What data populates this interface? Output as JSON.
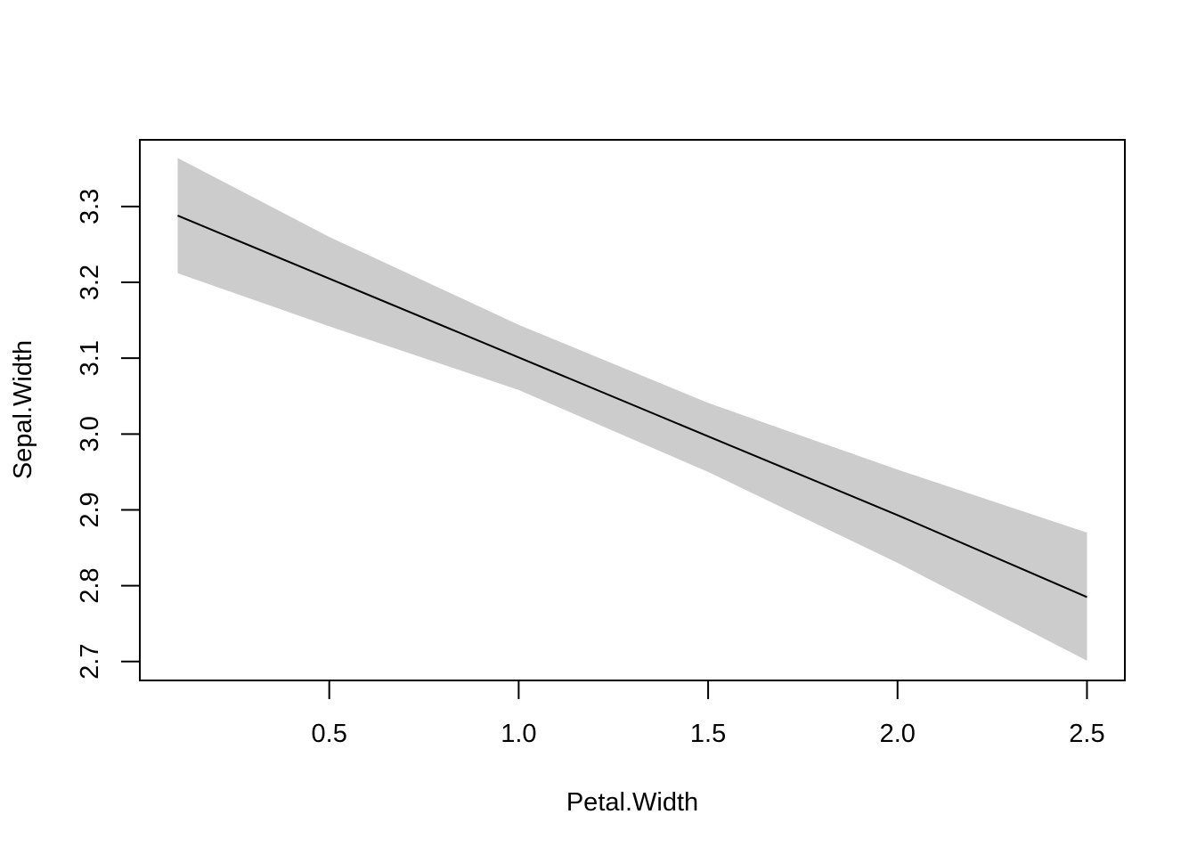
{
  "chart_data": {
    "type": "line",
    "title": "",
    "xlabel": "Petal.Width",
    "ylabel": "Sepal.Width",
    "xlim": [
      0.0,
      2.6
    ],
    "ylim": [
      2.675,
      3.388
    ],
    "x_ticks": [
      0.5,
      1.0,
      1.5,
      2.0,
      2.5
    ],
    "x_tick_labels": [
      "0.5",
      "1.0",
      "1.5",
      "2.0",
      "2.5"
    ],
    "y_ticks": [
      2.7,
      2.8,
      2.9,
      3.0,
      3.1,
      3.2,
      3.3
    ],
    "y_tick_labels": [
      "2.7",
      "2.8",
      "2.9",
      "3.0",
      "3.1",
      "3.2",
      "3.3"
    ],
    "grid": false,
    "legend": "none",
    "series": [
      {
        "x": [
          0.1,
          0.5,
          1.0,
          1.5,
          2.0,
          2.5
        ],
        "y": [
          3.288,
          3.205,
          3.101,
          2.997,
          2.893,
          2.785
        ],
        "lower": [
          3.212,
          3.142,
          3.058,
          2.95,
          2.83,
          2.701
        ],
        "upper": [
          3.364,
          3.26,
          3.144,
          3.041,
          2.953,
          2.87
        ],
        "line_color": "#000000",
        "band_color": "#cccccc"
      }
    ]
  }
}
